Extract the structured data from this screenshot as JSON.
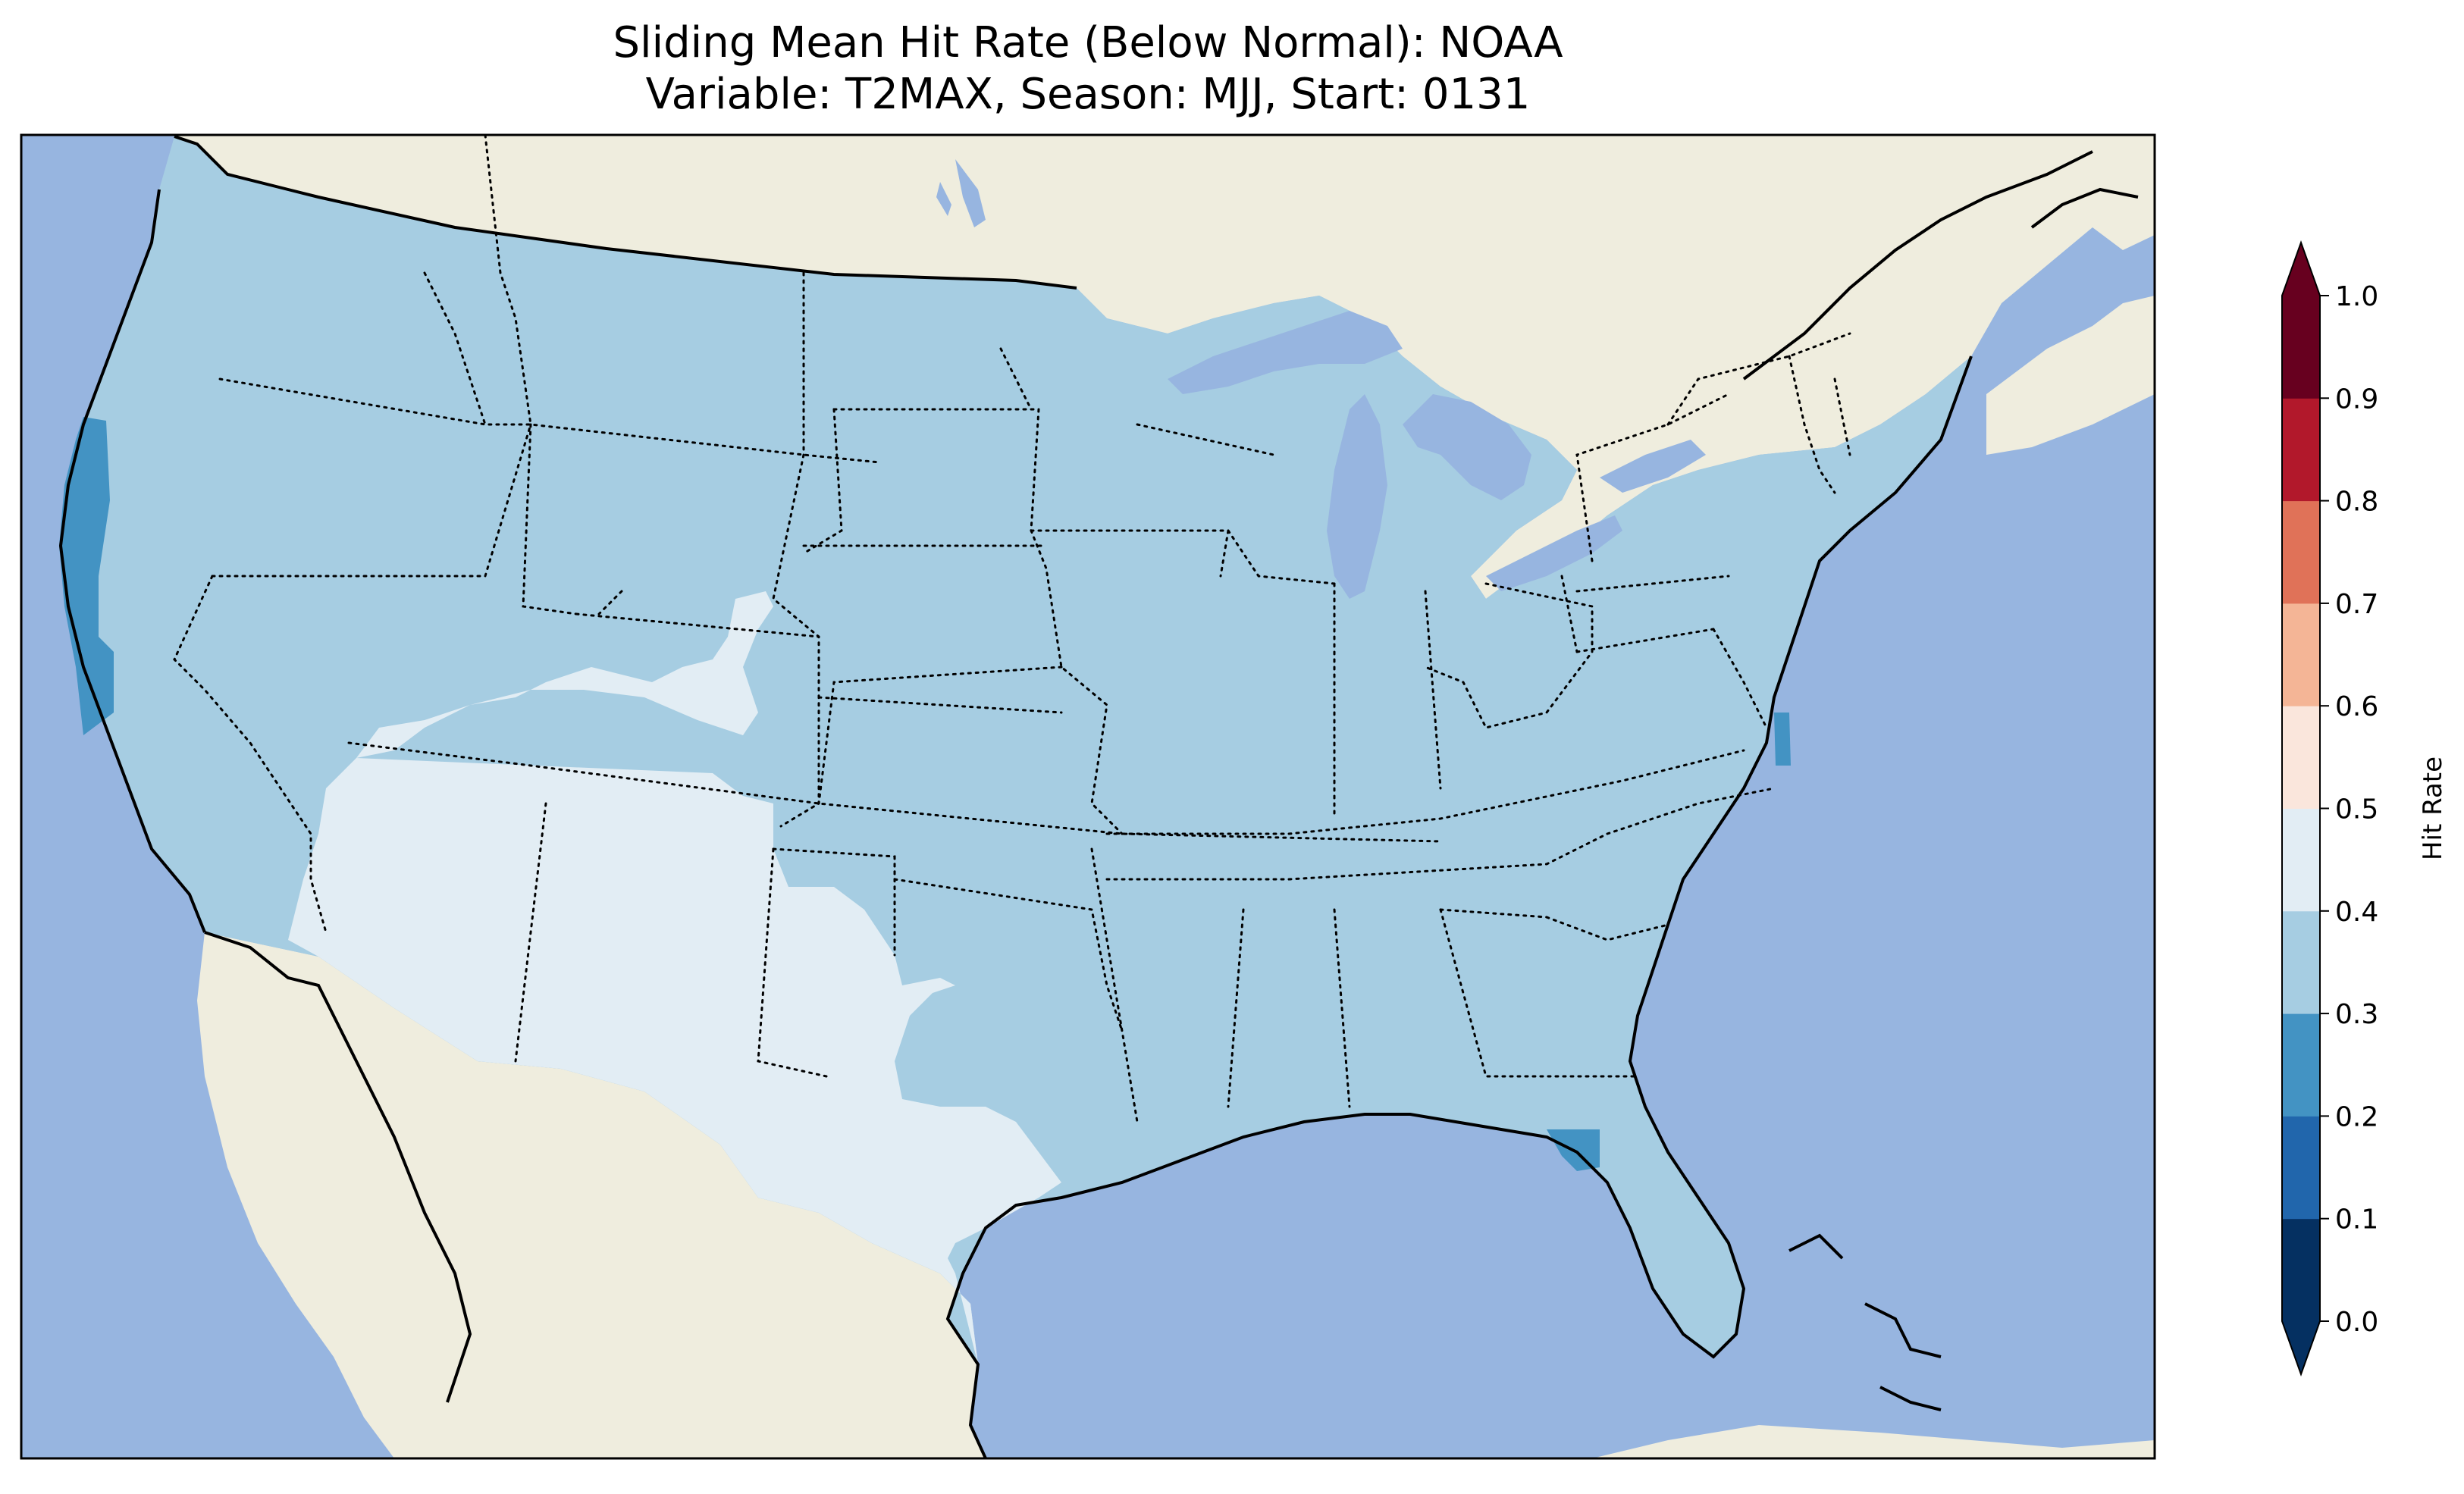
{
  "title_line1": "Sliding Mean Hit Rate (Below Normal): NOAA",
  "title_line2": "Variable: T2MAX, Season: MJJ, Start: 0131",
  "colors": {
    "ocean": "#97b5e0",
    "land": "#efedde",
    "lake": "#97b5e0",
    "bin_0_0_1": "#053061",
    "bin_0_1_0_2": "#2166ac",
    "bin_0_2_0_3": "#4393c3",
    "bin_0_3_0_4": "#a6cde2",
    "bin_0_4_0_5": "#e2edf4",
    "bin_0_5_0_6": "#fae6dc",
    "bin_0_6_0_7": "#f4b596",
    "bin_0_7_0_8": "#e07258",
    "bin_0_8_0_9": "#b2182b",
    "bin_0_9_1_0": "#67001f"
  },
  "colorbar": {
    "label": "Hit Rate",
    "ticks": [
      "0.0",
      "0.1",
      "0.2",
      "0.3",
      "0.4",
      "0.5",
      "0.6",
      "0.7",
      "0.8",
      "0.9",
      "1.0"
    ],
    "levels": [
      0.0,
      0.1,
      0.2,
      0.3,
      0.4,
      0.5,
      0.6,
      0.7,
      0.8,
      0.9,
      1.0
    ],
    "extend": "both"
  },
  "map_data": {
    "dominant_hit_rate_range": [
      0.3,
      0.4
    ],
    "southwest_hit_rate_range": [
      0.4,
      0.5
    ],
    "west_coast_low_range": [
      0.2,
      0.3
    ],
    "projection": "PlateCarree",
    "region": "Contiguous United States"
  }
}
